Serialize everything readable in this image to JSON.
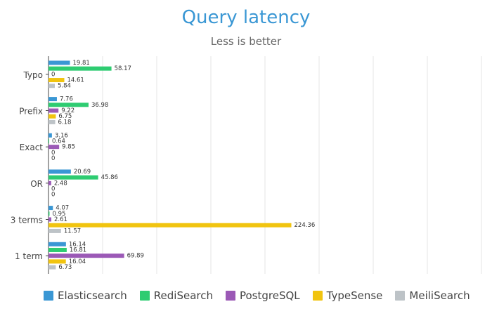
{
  "chart_data": {
    "type": "bar",
    "orientation": "horizontal",
    "title": "Query latency",
    "subtitle": "Less is better",
    "categories": [
      "Typo",
      "Prefix",
      "Exact",
      "OR",
      "3 terms",
      "1 term"
    ],
    "series": [
      {
        "name": "Elasticsearch",
        "color": "#3a97d4",
        "values": [
          19.81,
          7.76,
          3.16,
          20.69,
          4.07,
          16.14
        ]
      },
      {
        "name": "RediSearch",
        "color": "#2ecc71",
        "values": [
          58.17,
          36.98,
          0.64,
          45.86,
          0.95,
          16.81
        ]
      },
      {
        "name": "PostgreSQL",
        "color": "#9b59b6",
        "values": [
          0,
          9.22,
          9.85,
          2.48,
          2.61,
          69.89
        ]
      },
      {
        "name": "TypeSense",
        "color": "#f1c40f",
        "values": [
          14.61,
          6.75,
          0,
          0,
          224.36,
          16.04
        ]
      },
      {
        "name": "MeiliSearch",
        "color": "#bdc3c7",
        "values": [
          5.84,
          6.18,
          0,
          0,
          11.57,
          6.73
        ]
      }
    ],
    "xlim": [
      0,
      400
    ],
    "x_gridlines": [
      50,
      100,
      150,
      200,
      250,
      300,
      350,
      400
    ],
    "grid": true,
    "legend_position": "bottom"
  }
}
